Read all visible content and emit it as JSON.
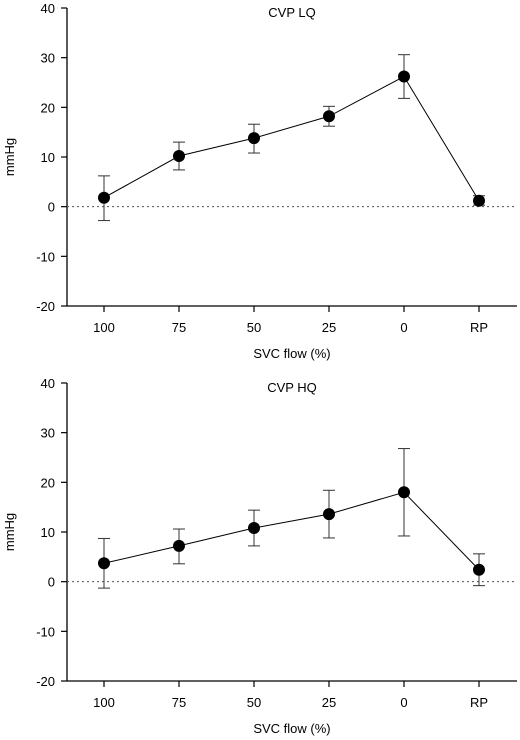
{
  "chart_data": [
    {
      "type": "line",
      "title": "CVP LQ",
      "xlabel": "SVC flow (%)",
      "ylabel": "mmHg",
      "categories": [
        "100",
        "75",
        "50",
        "25",
        "0",
        "RP"
      ],
      "ylim": [
        -20,
        40
      ],
      "yticks": [
        -20,
        -10,
        0,
        10,
        20,
        30,
        40
      ],
      "reference_line": 0,
      "series": [
        {
          "values": [
            1.8,
            10.2,
            13.8,
            18.2,
            26.2,
            1.2
          ],
          "err_low": [
            -2.8,
            7.4,
            10.8,
            16.2,
            21.8,
            0.3
          ],
          "err_high": [
            6.2,
            13.0,
            16.6,
            20.2,
            30.6,
            2.2
          ]
        }
      ]
    },
    {
      "type": "line",
      "title": "CVP HQ",
      "xlabel": "SVC flow (%)",
      "ylabel": "mmHg",
      "categories": [
        "100",
        "75",
        "50",
        "25",
        "0",
        "RP"
      ],
      "ylim": [
        -20,
        40
      ],
      "yticks": [
        -20,
        -10,
        0,
        10,
        20,
        30,
        40
      ],
      "reference_line": 0,
      "series": [
        {
          "values": [
            3.7,
            7.2,
            10.8,
            13.6,
            18.0,
            2.4
          ],
          "err_low": [
            -1.3,
            3.6,
            7.2,
            8.8,
            9.2,
            -0.8
          ],
          "err_high": [
            8.7,
            10.6,
            14.4,
            18.4,
            26.8,
            5.6
          ]
        }
      ]
    }
  ]
}
